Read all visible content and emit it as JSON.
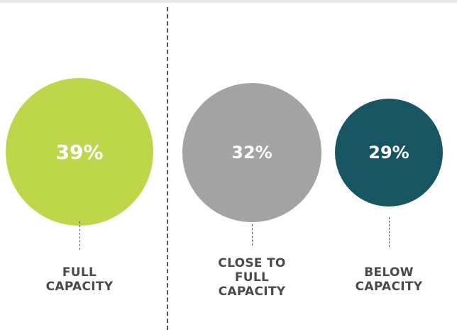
{
  "chart_data": {
    "type": "bubble",
    "categories": [
      "FULL\nCAPACITY",
      "CLOSE TO\nFULL\nCAPACITY",
      "BELOW\nCAPACITY"
    ],
    "values": [
      39,
      32,
      29
    ],
    "labels": [
      "39%",
      "32%",
      "29%"
    ],
    "unit": "%",
    "colors": [
      "#bed64a",
      "#a3a3a3",
      "#185563"
    ]
  }
}
